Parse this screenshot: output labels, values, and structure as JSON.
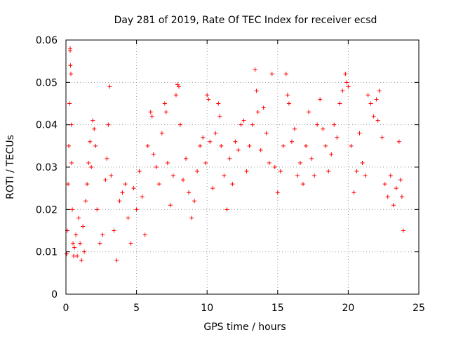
{
  "chart_data": {
    "type": "scatter",
    "title": "Day 281 of 2019, Rate Of TEC Index for receiver ecsd",
    "xlabel": "GPS time / hours",
    "ylabel": "ROTI / TECUs",
    "xlim": [
      0,
      25
    ],
    "ylim": [
      0,
      0.06
    ],
    "x_ticks": [
      0,
      5,
      10,
      15,
      20,
      25
    ],
    "x_tick_labels": [
      "0",
      "5",
      "10",
      "15",
      "20",
      "25"
    ],
    "y_ticks": [
      0,
      0.01,
      0.02,
      0.03,
      0.04,
      0.05,
      0.06
    ],
    "y_tick_labels": [
      "0",
      "0.01",
      "0.02",
      "0.03",
      "0.04",
      "0.05",
      "0.06"
    ],
    "grid": true,
    "marker": "+",
    "color": "#ff0000",
    "series": [
      {
        "name": "ROTI",
        "points": [
          [
            0.05,
            0.0095
          ],
          [
            0.1,
            0.015
          ],
          [
            0.15,
            0.026
          ],
          [
            0.2,
            0.035
          ],
          [
            0.25,
            0.045
          ],
          [
            0.3,
            0.058
          ],
          [
            0.3,
            0.0575
          ],
          [
            0.32,
            0.054
          ],
          [
            0.35,
            0.052
          ],
          [
            0.38,
            0.04
          ],
          [
            0.4,
            0.031
          ],
          [
            0.45,
            0.02
          ],
          [
            0.5,
            0.012
          ],
          [
            0.55,
            0.009
          ],
          [
            0.6,
            0.011
          ],
          [
            0.7,
            0.014
          ],
          [
            0.8,
            0.009
          ],
          [
            0.9,
            0.018
          ],
          [
            1.0,
            0.012
          ],
          [
            1.1,
            0.008
          ],
          [
            1.2,
            0.016
          ],
          [
            1.3,
            0.01
          ],
          [
            1.4,
            0.022
          ],
          [
            1.5,
            0.026
          ],
          [
            1.6,
            0.031
          ],
          [
            1.7,
            0.036
          ],
          [
            1.8,
            0.03
          ],
          [
            1.9,
            0.041
          ],
          [
            2.0,
            0.039
          ],
          [
            2.1,
            0.035
          ],
          [
            2.2,
            0.02
          ],
          [
            2.4,
            0.012
          ],
          [
            2.6,
            0.014
          ],
          [
            2.8,
            0.027
          ],
          [
            2.9,
            0.032
          ],
          [
            3.0,
            0.04
          ],
          [
            3.1,
            0.049
          ],
          [
            3.2,
            0.028
          ],
          [
            3.4,
            0.015
          ],
          [
            3.6,
            0.008
          ],
          [
            3.8,
            0.022
          ],
          [
            4.0,
            0.024
          ],
          [
            4.2,
            0.026
          ],
          [
            4.4,
            0.018
          ],
          [
            4.6,
            0.012
          ],
          [
            4.8,
            0.025
          ],
          [
            5.0,
            0.02
          ],
          [
            5.2,
            0.029
          ],
          [
            5.4,
            0.023
          ],
          [
            5.6,
            0.014
          ],
          [
            5.8,
            0.035
          ],
          [
            6.0,
            0.043
          ],
          [
            6.1,
            0.042
          ],
          [
            6.2,
            0.033
          ],
          [
            6.4,
            0.03
          ],
          [
            6.6,
            0.026
          ],
          [
            6.8,
            0.038
          ],
          [
            7.0,
            0.045
          ],
          [
            7.1,
            0.043
          ],
          [
            7.2,
            0.031
          ],
          [
            7.4,
            0.021
          ],
          [
            7.6,
            0.028
          ],
          [
            7.8,
            0.047
          ],
          [
            7.9,
            0.0495
          ],
          [
            8.0,
            0.049
          ],
          [
            8.1,
            0.04
          ],
          [
            8.3,
            0.027
          ],
          [
            8.5,
            0.032
          ],
          [
            8.7,
            0.024
          ],
          [
            8.9,
            0.018
          ],
          [
            9.1,
            0.022
          ],
          [
            9.3,
            0.029
          ],
          [
            9.5,
            0.035
          ],
          [
            9.7,
            0.037
          ],
          [
            9.9,
            0.031
          ],
          [
            10.0,
            0.047
          ],
          [
            10.1,
            0.046
          ],
          [
            10.2,
            0.036
          ],
          [
            10.4,
            0.025
          ],
          [
            10.6,
            0.038
          ],
          [
            10.8,
            0.045
          ],
          [
            10.9,
            0.042
          ],
          [
            11.0,
            0.035
          ],
          [
            11.2,
            0.028
          ],
          [
            11.4,
            0.02
          ],
          [
            11.6,
            0.032
          ],
          [
            11.8,
            0.026
          ],
          [
            12.0,
            0.036
          ],
          [
            12.2,
            0.034
          ],
          [
            12.4,
            0.04
          ],
          [
            12.6,
            0.041
          ],
          [
            12.8,
            0.029
          ],
          [
            13.0,
            0.035
          ],
          [
            13.2,
            0.04
          ],
          [
            13.4,
            0.053
          ],
          [
            13.5,
            0.048
          ],
          [
            13.6,
            0.043
          ],
          [
            13.8,
            0.034
          ],
          [
            14.0,
            0.044
          ],
          [
            14.2,
            0.038
          ],
          [
            14.4,
            0.031
          ],
          [
            14.6,
            0.052
          ],
          [
            14.8,
            0.03
          ],
          [
            15.0,
            0.024
          ],
          [
            15.2,
            0.029
          ],
          [
            15.4,
            0.035
          ],
          [
            15.6,
            0.052
          ],
          [
            15.7,
            0.047
          ],
          [
            15.8,
            0.045
          ],
          [
            16.0,
            0.036
          ],
          [
            16.2,
            0.039
          ],
          [
            16.4,
            0.028
          ],
          [
            16.6,
            0.031
          ],
          [
            16.8,
            0.026
          ],
          [
            17.0,
            0.035
          ],
          [
            17.2,
            0.043
          ],
          [
            17.4,
            0.032
          ],
          [
            17.6,
            0.028
          ],
          [
            17.8,
            0.04
          ],
          [
            18.0,
            0.046
          ],
          [
            18.2,
            0.039
          ],
          [
            18.4,
            0.035
          ],
          [
            18.6,
            0.029
          ],
          [
            18.8,
            0.033
          ],
          [
            19.0,
            0.04
          ],
          [
            19.2,
            0.037
          ],
          [
            19.4,
            0.045
          ],
          [
            19.6,
            0.048
          ],
          [
            19.8,
            0.052
          ],
          [
            19.9,
            0.05
          ],
          [
            20.0,
            0.049
          ],
          [
            20.2,
            0.035
          ],
          [
            20.4,
            0.024
          ],
          [
            20.6,
            0.029
          ],
          [
            20.8,
            0.038
          ],
          [
            21.0,
            0.031
          ],
          [
            21.2,
            0.028
          ],
          [
            21.4,
            0.047
          ],
          [
            21.6,
            0.045
          ],
          [
            21.8,
            0.042
          ],
          [
            22.0,
            0.046
          ],
          [
            22.1,
            0.041
          ],
          [
            22.2,
            0.048
          ],
          [
            22.4,
            0.037
          ],
          [
            22.6,
            0.026
          ],
          [
            22.8,
            0.023
          ],
          [
            23.0,
            0.028
          ],
          [
            23.2,
            0.021
          ],
          [
            23.4,
            0.025
          ],
          [
            23.6,
            0.036
          ],
          [
            23.7,
            0.027
          ],
          [
            23.8,
            0.023
          ],
          [
            23.9,
            0.015
          ]
        ]
      }
    ]
  }
}
